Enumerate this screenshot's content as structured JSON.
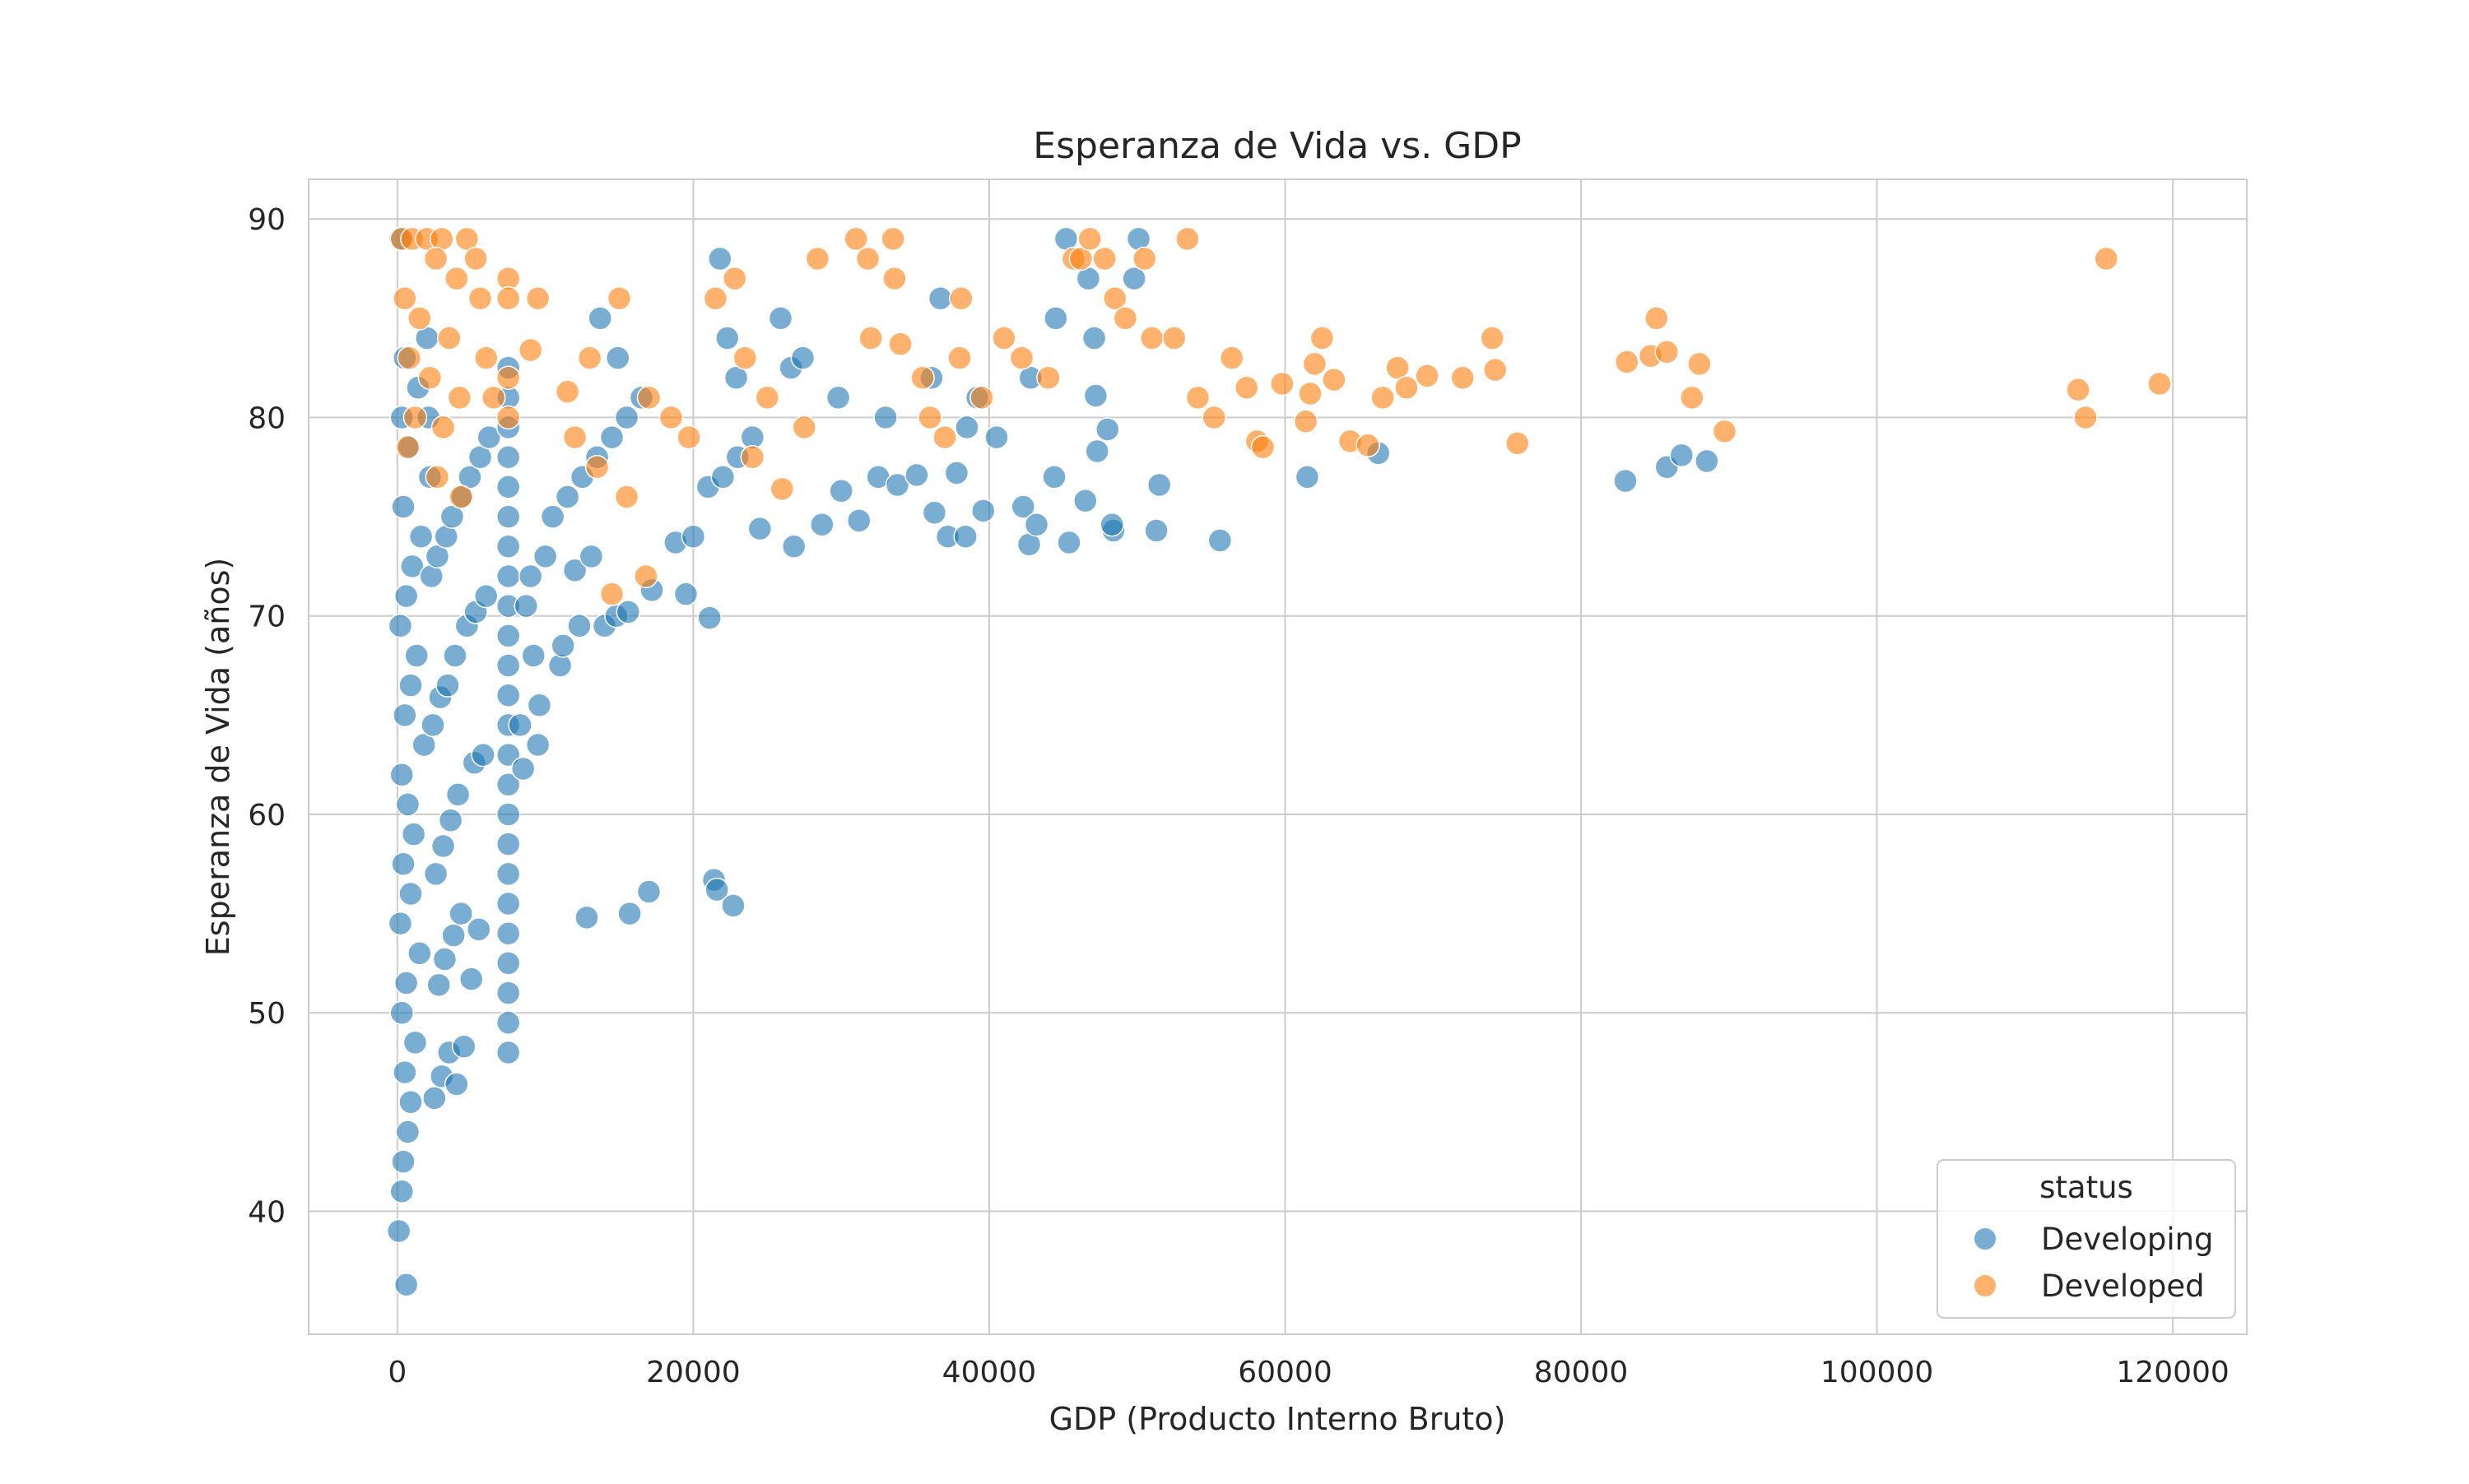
{
  "chart_data": {
    "type": "scatter",
    "title": "Esperanza de Vida vs. GDP",
    "xlabel": "GDP (Producto Interno Bruto)",
    "ylabel": "Esperanza de Vida (años)",
    "xlim": [
      -6000,
      125000
    ],
    "ylim": [
      33.8,
      92
    ],
    "xticks": [
      0,
      20000,
      40000,
      60000,
      80000,
      100000,
      120000
    ],
    "xtick_labels": [
      "0",
      "20000",
      "40000",
      "60000",
      "80000",
      "100000",
      "120000"
    ],
    "yticks": [
      40,
      50,
      60,
      70,
      80,
      90
    ],
    "ytick_labels": [
      "40",
      "50",
      "60",
      "70",
      "80",
      "90"
    ],
    "grid": true,
    "legend": {
      "title": "status",
      "placement": "lower-right"
    },
    "series": [
      {
        "name": "Developing",
        "color": "#1f77b4",
        "points": [
          [
            200,
            89
          ],
          [
            100,
            39
          ],
          [
            600,
            36.3
          ],
          [
            300,
            41
          ],
          [
            400,
            42.5
          ],
          [
            700,
            44
          ],
          [
            900,
            45.5
          ],
          [
            500,
            47
          ],
          [
            1200,
            48.5
          ],
          [
            300,
            50
          ],
          [
            600,
            51.5
          ],
          [
            1500,
            53
          ],
          [
            200,
            54.5
          ],
          [
            900,
            56
          ],
          [
            400,
            57.5
          ],
          [
            1100,
            59
          ],
          [
            700,
            60.5
          ],
          [
            300,
            62
          ],
          [
            1800,
            63.5
          ],
          [
            500,
            65
          ],
          [
            900,
            66.5
          ],
          [
            1300,
            68
          ],
          [
            200,
            69.5
          ],
          [
            600,
            71
          ],
          [
            1000,
            72.5
          ],
          [
            1600,
            74
          ],
          [
            400,
            75.5
          ],
          [
            2200,
            77
          ],
          [
            800,
            78.5
          ],
          [
            300,
            80
          ],
          [
            1400,
            81.5
          ],
          [
            500,
            83
          ],
          [
            2000,
            84
          ],
          [
            2500,
            45.7
          ],
          [
            3000,
            46.8
          ],
          [
            3500,
            48
          ],
          [
            4000,
            46.4
          ],
          [
            4500,
            48.3
          ],
          [
            2800,
            51.4
          ],
          [
            3200,
            52.7
          ],
          [
            3800,
            53.9
          ],
          [
            4300,
            55
          ],
          [
            5000,
            51.7
          ],
          [
            5500,
            54.2
          ],
          [
            2600,
            57
          ],
          [
            3100,
            58.4
          ],
          [
            3600,
            59.7
          ],
          [
            4100,
            61
          ],
          [
            5200,
            62.6
          ],
          [
            5800,
            63
          ],
          [
            2400,
            64.5
          ],
          [
            2900,
            65.9
          ],
          [
            3400,
            66.5
          ],
          [
            3900,
            68
          ],
          [
            4700,
            69.5
          ],
          [
            5300,
            70.2
          ],
          [
            6000,
            71
          ],
          [
            2300,
            72
          ],
          [
            2700,
            73
          ],
          [
            3300,
            74
          ],
          [
            3700,
            75
          ],
          [
            4400,
            76
          ],
          [
            4900,
            77
          ],
          [
            5600,
            78
          ],
          [
            6200,
            79
          ],
          [
            2100,
            80
          ],
          [
            7500,
            48
          ],
          [
            7500,
            49.5
          ],
          [
            7500,
            51
          ],
          [
            7500,
            52.5
          ],
          [
            7500,
            54
          ],
          [
            7500,
            55.5
          ],
          [
            7500,
            57
          ],
          [
            7500,
            58.5
          ],
          [
            7500,
            60
          ],
          [
            7500,
            61.5
          ],
          [
            7500,
            63
          ],
          [
            7500,
            64.5
          ],
          [
            7500,
            66
          ],
          [
            7500,
            67.5
          ],
          [
            7500,
            69
          ],
          [
            7500,
            70.5
          ],
          [
            7500,
            72
          ],
          [
            7500,
            73.5
          ],
          [
            7500,
            75
          ],
          [
            7500,
            76.5
          ],
          [
            7500,
            78
          ],
          [
            7500,
            79.5
          ],
          [
            7500,
            81
          ],
          [
            7500,
            82.5
          ],
          [
            8500,
            62.3
          ],
          [
            8300,
            64.5
          ],
          [
            9500,
            63.5
          ],
          [
            9600,
            65.5
          ],
          [
            9200,
            68
          ],
          [
            8700,
            70.5
          ],
          [
            9000,
            72
          ],
          [
            10000,
            73
          ],
          [
            11000,
            67.5
          ],
          [
            11200,
            68.5
          ],
          [
            12300,
            69.5
          ],
          [
            12000,
            72.3
          ],
          [
            13100,
            73
          ],
          [
            14000,
            69.5
          ],
          [
            14800,
            70
          ],
          [
            15600,
            70.2
          ],
          [
            10500,
            75
          ],
          [
            11500,
            76
          ],
          [
            12500,
            77
          ],
          [
            13500,
            78
          ],
          [
            14500,
            79
          ],
          [
            15500,
            80
          ],
          [
            16500,
            81
          ],
          [
            13700,
            85
          ],
          [
            14900,
            83
          ],
          [
            12800,
            54.8
          ],
          [
            15700,
            55
          ],
          [
            17000,
            56.1
          ],
          [
            21400,
            56.7
          ],
          [
            21600,
            56.2
          ],
          [
            22700,
            55.4
          ],
          [
            21100,
            69.9
          ],
          [
            19500,
            71.1
          ],
          [
            17200,
            71.3
          ],
          [
            18800,
            73.7
          ],
          [
            20000,
            74
          ],
          [
            21000,
            76.5
          ],
          [
            22000,
            77
          ],
          [
            23000,
            78
          ],
          [
            24000,
            79
          ],
          [
            21800,
            88
          ],
          [
            22300,
            84
          ],
          [
            22900,
            82
          ],
          [
            24500,
            74.4
          ],
          [
            26800,
            73.5
          ],
          [
            28700,
            74.6
          ],
          [
            30000,
            76.3
          ],
          [
            31200,
            74.8
          ],
          [
            32500,
            77
          ],
          [
            33800,
            76.6
          ],
          [
            35100,
            77.1
          ],
          [
            36300,
            75.2
          ],
          [
            37200,
            74
          ],
          [
            38400,
            74
          ],
          [
            39600,
            75.3
          ],
          [
            25900,
            85
          ],
          [
            26600,
            82.5
          ],
          [
            27400,
            83
          ],
          [
            29800,
            81
          ],
          [
            33000,
            80
          ],
          [
            36700,
            86
          ],
          [
            38500,
            79.5
          ],
          [
            37800,
            77.2
          ],
          [
            40500,
            79
          ],
          [
            42300,
            75.5
          ],
          [
            42700,
            73.6
          ],
          [
            43200,
            74.6
          ],
          [
            44400,
            77
          ],
          [
            45400,
            73.7
          ],
          [
            46500,
            75.8
          ],
          [
            47300,
            78.3
          ],
          [
            48400,
            74.3
          ],
          [
            48300,
            74.6
          ],
          [
            48000,
            79.4
          ],
          [
            51300,
            74.3
          ],
          [
            51500,
            76.6
          ],
          [
            55600,
            73.8
          ],
          [
            44500,
            85
          ],
          [
            45200,
            89
          ],
          [
            46700,
            87
          ],
          [
            47100,
            84
          ],
          [
            49800,
            87
          ],
          [
            50100,
            89
          ],
          [
            42800,
            82
          ],
          [
            47200,
            81.1
          ],
          [
            61500,
            77
          ],
          [
            66300,
            78.2
          ],
          [
            83000,
            76.8
          ],
          [
            85800,
            77.5
          ],
          [
            86800,
            78.1
          ],
          [
            88500,
            77.8
          ],
          [
            36100,
            82
          ],
          [
            39200,
            81
          ]
        ]
      },
      {
        "name": "Developed",
        "color": "#ff7f0e",
        "points": [
          [
            300,
            89
          ],
          [
            1000,
            89
          ],
          [
            2000,
            89
          ],
          [
            3000,
            89
          ],
          [
            4700,
            89
          ],
          [
            2600,
            88
          ],
          [
            4000,
            87
          ],
          [
            500,
            86
          ],
          [
            1500,
            85
          ],
          [
            3500,
            84
          ],
          [
            800,
            83
          ],
          [
            2200,
            82
          ],
          [
            4200,
            81
          ],
          [
            1200,
            80
          ],
          [
            3100,
            79.5
          ],
          [
            700,
            78.5
          ],
          [
            2700,
            77
          ],
          [
            4300,
            76
          ],
          [
            5300,
            88
          ],
          [
            5600,
            86
          ],
          [
            6000,
            83
          ],
          [
            6500,
            81
          ],
          [
            7500,
            87
          ],
          [
            7500,
            86
          ],
          [
            7500,
            82
          ],
          [
            7500,
            80
          ],
          [
            9500,
            86
          ],
          [
            9000,
            83.4
          ],
          [
            11500,
            81.3
          ],
          [
            13000,
            83
          ],
          [
            15000,
            86
          ],
          [
            12000,
            79
          ],
          [
            13500,
            77.5
          ],
          [
            15500,
            76
          ],
          [
            16800,
            72
          ],
          [
            14500,
            71.1
          ],
          [
            17000,
            81
          ],
          [
            18500,
            80
          ],
          [
            19700,
            79
          ],
          [
            21500,
            86
          ],
          [
            22800,
            87
          ],
          [
            23500,
            83
          ],
          [
            25000,
            81
          ],
          [
            24000,
            78
          ],
          [
            26000,
            76.4
          ],
          [
            27500,
            79.5
          ],
          [
            28400,
            88
          ],
          [
            31000,
            89
          ],
          [
            31800,
            88
          ],
          [
            33500,
            89
          ],
          [
            33600,
            87
          ],
          [
            32000,
            84
          ],
          [
            34000,
            83.7
          ],
          [
            35500,
            82
          ],
          [
            36000,
            80
          ],
          [
            37000,
            79
          ],
          [
            38100,
            86
          ],
          [
            38000,
            83
          ],
          [
            39500,
            81
          ],
          [
            41000,
            84
          ],
          [
            42200,
            83
          ],
          [
            44000,
            82
          ],
          [
            45700,
            88
          ],
          [
            46200,
            88
          ],
          [
            46800,
            89
          ],
          [
            47800,
            88
          ],
          [
            48500,
            86
          ],
          [
            49200,
            85
          ],
          [
            50500,
            88
          ],
          [
            51000,
            84
          ],
          [
            52500,
            84
          ],
          [
            53400,
            89
          ],
          [
            54100,
            81
          ],
          [
            55200,
            80
          ],
          [
            56400,
            83
          ],
          [
            57400,
            81.5
          ],
          [
            58100,
            78.8
          ],
          [
            58500,
            78.5
          ],
          [
            59800,
            81.7
          ],
          [
            61400,
            79.8
          ],
          [
            61700,
            81.2
          ],
          [
            62000,
            82.7
          ],
          [
            62500,
            84
          ],
          [
            63300,
            81.9
          ],
          [
            64400,
            78.8
          ],
          [
            65600,
            78.6
          ],
          [
            66600,
            81
          ],
          [
            67600,
            82.5
          ],
          [
            68200,
            81.5
          ],
          [
            69600,
            82.1
          ],
          [
            72000,
            82
          ],
          [
            74000,
            84
          ],
          [
            74200,
            82.4
          ],
          [
            75700,
            78.7
          ],
          [
            83100,
            82.8
          ],
          [
            84700,
            83.1
          ],
          [
            85100,
            85
          ],
          [
            85800,
            83.3
          ],
          [
            87500,
            81
          ],
          [
            88000,
            82.7
          ],
          [
            89700,
            79.3
          ],
          [
            113600,
            81.4
          ],
          [
            114100,
            80
          ],
          [
            115500,
            88
          ],
          [
            119100,
            81.7
          ]
        ]
      }
    ]
  }
}
